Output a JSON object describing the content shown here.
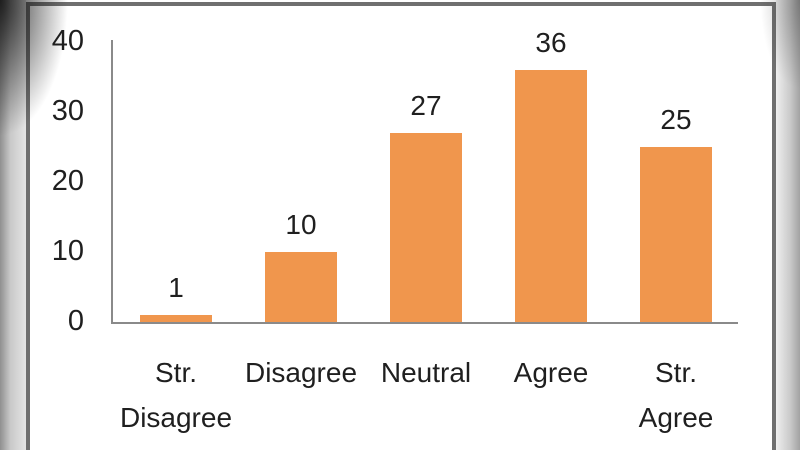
{
  "chart_data": {
    "type": "bar",
    "title": "",
    "xlabel": "",
    "ylabel": "",
    "categories": [
      "Str. Disagree",
      "Disagree",
      "Neutral",
      "Agree",
      "Str. Agree"
    ],
    "category_lines": [
      [
        "Str.",
        "Disagree"
      ],
      [
        "Disagree"
      ],
      [
        "Neutral"
      ],
      [
        "Agree"
      ],
      [
        "Str.",
        "Agree"
      ]
    ],
    "values": [
      1,
      10,
      27,
      36,
      25
    ],
    "data_labels": [
      "1",
      "10",
      "27",
      "36",
      "25"
    ],
    "y_ticks": [
      "0",
      "10",
      "20",
      "30",
      "40"
    ],
    "y_tick_values": [
      0,
      10,
      20,
      30,
      40
    ],
    "ylim": [
      0,
      40
    ],
    "grid": false,
    "legend": false,
    "bar_color": "#F0964D",
    "axis_color": "#8A8A8A",
    "text_color": "#1F1F1F",
    "frame_border_color": "#6F6F6F",
    "background_color": "#FFFFFF"
  }
}
